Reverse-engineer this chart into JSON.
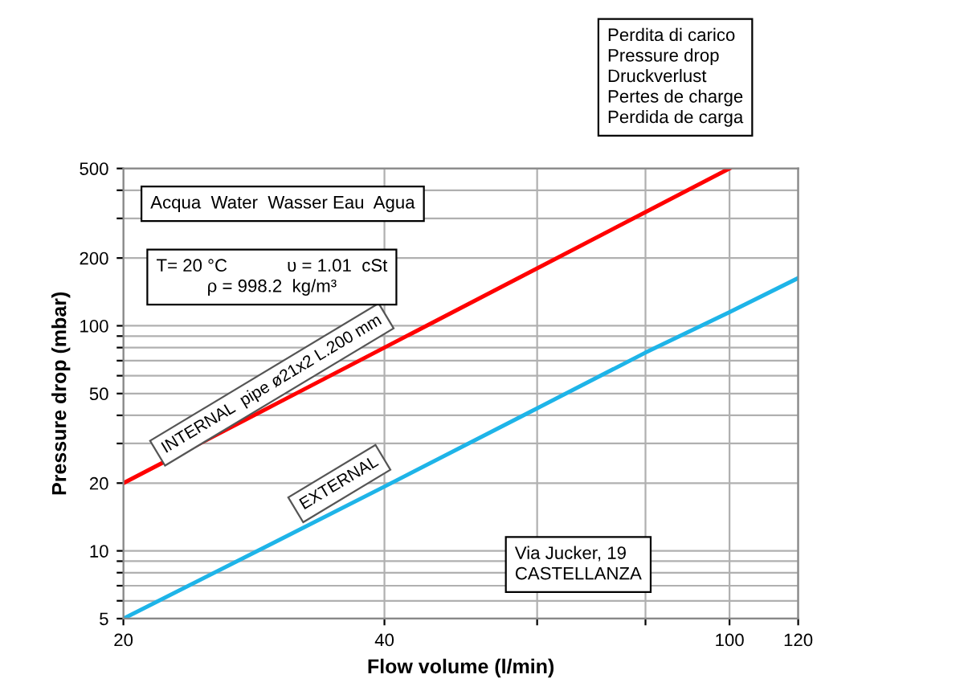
{
  "chart_data": {
    "type": "line",
    "xlabel": "Flow volume (l/min)",
    "ylabel": "Pressure drop (mbar)",
    "log": "xy",
    "xlim": [
      20,
      120
    ],
    "ylim": [
      5,
      500
    ],
    "xticks": [
      20,
      40,
      {
        "value": 60,
        "label": null
      },
      {
        "value": 80,
        "label": null
      },
      100,
      120
    ],
    "yticks": [
      5,
      {
        "value": 6,
        "label": null
      },
      {
        "value": 7,
        "label": null
      },
      {
        "value": 8,
        "label": null
      },
      {
        "value": 9,
        "label": null
      },
      10,
      20,
      {
        "value": 30,
        "label": null
      },
      {
        "value": 40,
        "label": null
      },
      50,
      {
        "value": 60,
        "label": null
      },
      {
        "value": 70,
        "label": null
      },
      {
        "value": 80,
        "label": null
      },
      {
        "value": 90,
        "label": null
      },
      100,
      200,
      {
        "value": 300,
        "label": null
      },
      {
        "value": 400,
        "label": null
      },
      500
    ],
    "grid": true,
    "legend": false,
    "marker": "none",
    "line_style": "solid",
    "series": [
      {
        "name": "INTERNAL  pipe ø21x2 L.200 mm",
        "color": "#ff0000",
        "x": [
          20,
          30,
          40,
          60,
          80,
          100
        ],
        "values": [
          20,
          45,
          80,
          180,
          320,
          500
        ]
      },
      {
        "name": "EXTERNAL",
        "color": "#1eb4e8",
        "x": [
          20,
          30,
          40,
          60,
          80,
          100,
          120
        ],
        "values": [
          5,
          11,
          19.3,
          43,
          76,
          115,
          163
        ]
      }
    ],
    "annotations": [
      "Acqua  Water  Wasser Eau  Agua",
      "T= 20 °C            υ = 1.01  cSt\nρ = 998.2  kg/m³",
      "Perdita di carico\nPressure drop\nDruckverlust\nPertes de charge\nPerdida de carga",
      "Via Jucker, 19\nCASTELLANZA"
    ]
  }
}
